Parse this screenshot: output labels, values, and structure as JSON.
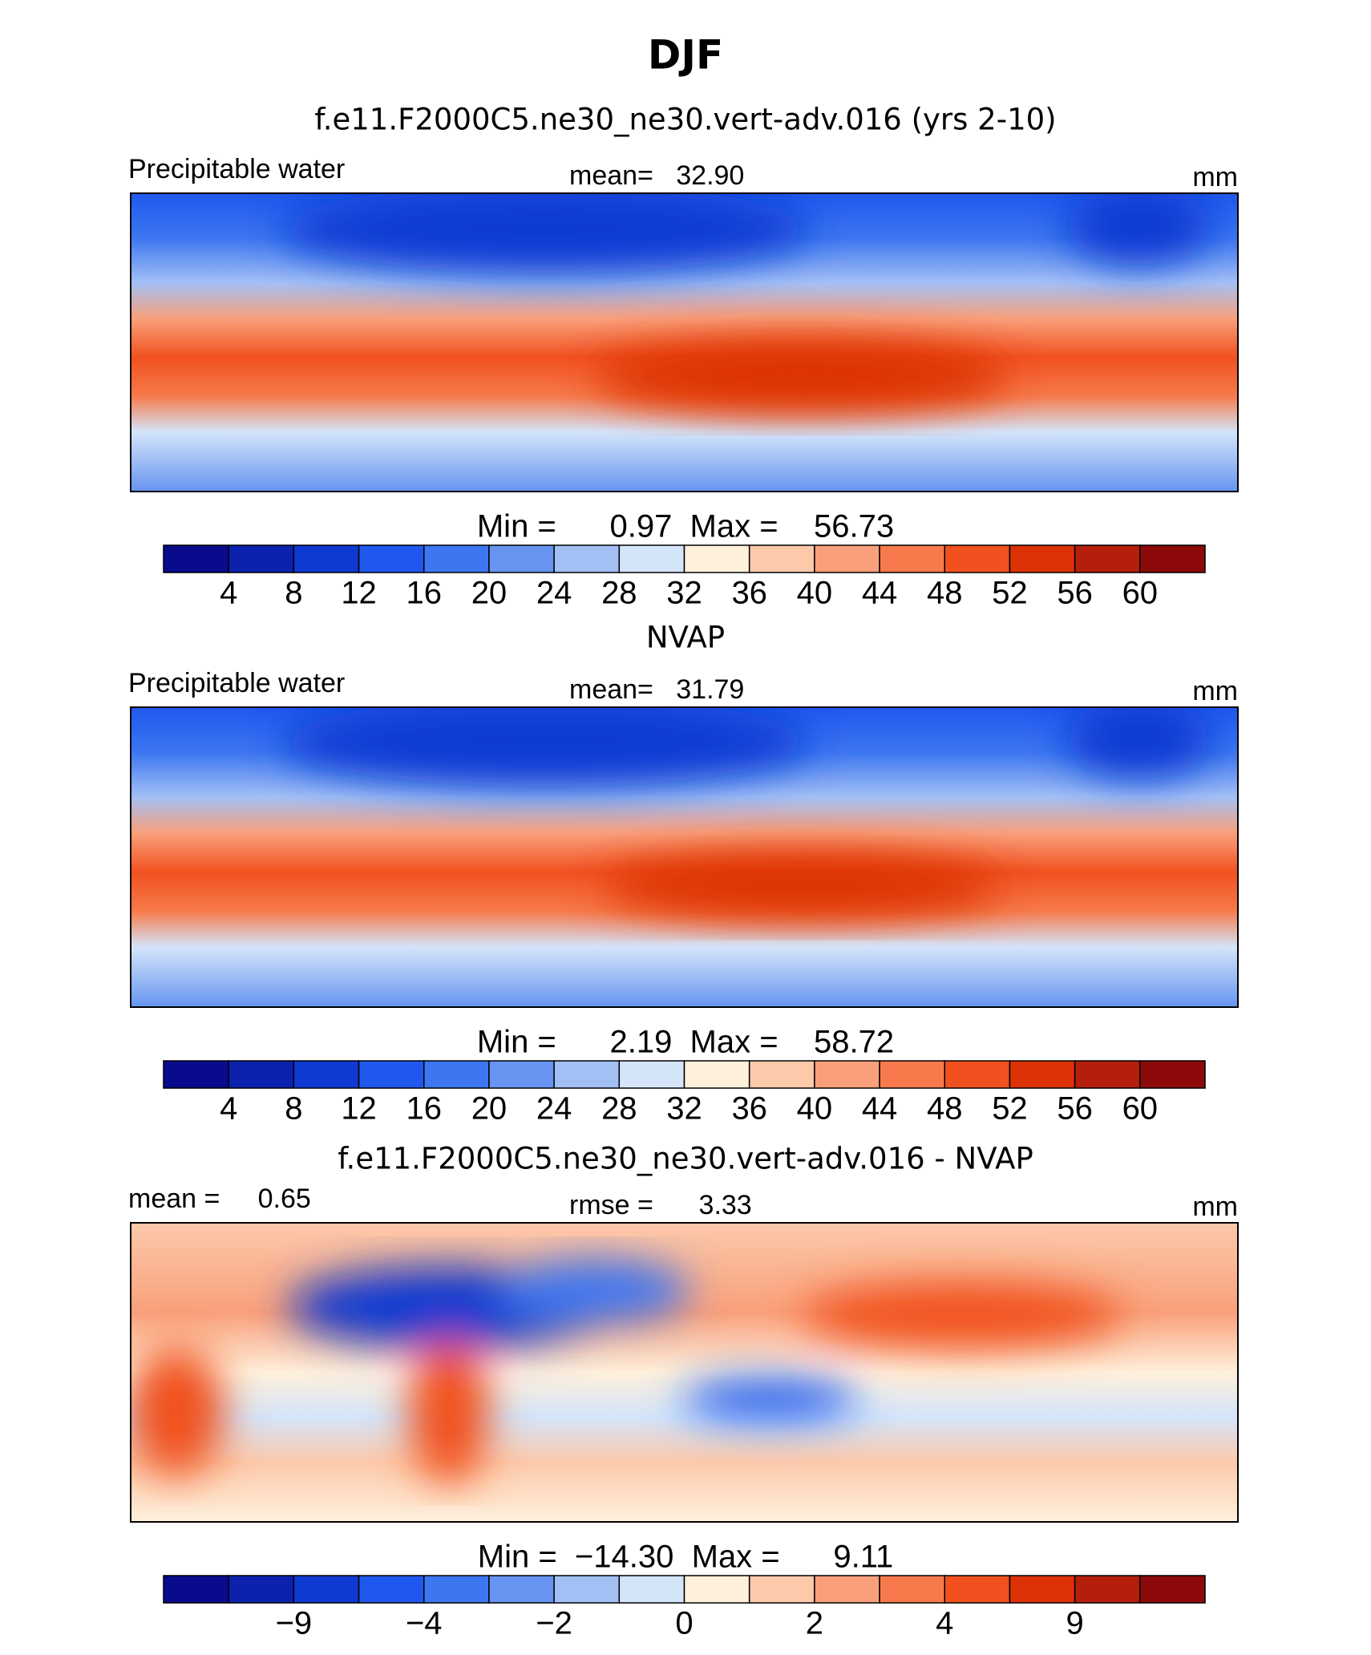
{
  "title": "DJF",
  "panels": [
    {
      "title": "f.e11.F2000C5.ne30_ne30.vert-adv.016 (yrs 2-10)",
      "left_label": "Precipitable water",
      "center_label": "mean=   32.90",
      "right_label": "mm",
      "stats": "Min =      0.97  Max =    56.73",
      "colorbar": {
        "colors": [
          "#0a0a8c",
          "#0b22ae",
          "#0e3ad2",
          "#1f58ee",
          "#3c76f0",
          "#6694f0",
          "#a3c0f5",
          "#d4e5fa",
          "#fff0dc",
          "#fcc9ab",
          "#f9a07b",
          "#f67a4b",
          "#f1511f",
          "#dc3206",
          "#b41e0b",
          "#8c0a0a"
        ],
        "ticks": [
          4,
          8,
          12,
          16,
          20,
          24,
          28,
          32,
          36,
          40,
          44,
          48,
          52,
          56,
          60
        ]
      }
    },
    {
      "title": "NVAP",
      "left_label": "Precipitable water",
      "center_label": "mean=   31.79",
      "right_label": "mm",
      "stats": "Min =      2.19  Max =    58.72",
      "colorbar": {
        "colors": [
          "#0a0a8c",
          "#0b22ae",
          "#0e3ad2",
          "#1f58ee",
          "#3c76f0",
          "#6694f0",
          "#a3c0f5",
          "#d4e5fa",
          "#fff0dc",
          "#fcc9ab",
          "#f9a07b",
          "#f67a4b",
          "#f1511f",
          "#dc3206",
          "#b41e0b",
          "#8c0a0a"
        ],
        "ticks": [
          4,
          8,
          12,
          16,
          20,
          24,
          28,
          32,
          36,
          40,
          44,
          48,
          52,
          56,
          60
        ]
      }
    },
    {
      "title": "f.e11.F2000C5.ne30_ne30.vert-adv.016 - NVAP",
      "left_label": "mean =     0.65",
      "center_label": "rmse =      3.33",
      "right_label": "mm",
      "stats": "Min =  −14.30  Max =      9.11",
      "colorbar": {
        "colors": [
          "#0a0a8c",
          "#0b22ae",
          "#0e3ad2",
          "#1f58ee",
          "#3c76f0",
          "#6694f0",
          "#a3c0f5",
          "#d4e5fa",
          "#fff0dc",
          "#fcc9ab",
          "#f9a07b",
          "#f67a4b",
          "#f1511f",
          "#dc3206",
          "#b41e0b",
          "#8c0a0a"
        ],
        "ticks": [
          null,
          {
            "value": -9,
            "label": "−9"
          },
          null,
          {
            "value": -4,
            "label": "−4"
          },
          null,
          {
            "value": -2,
            "label": "−2"
          },
          null,
          0,
          null,
          2,
          null,
          4,
          null,
          9,
          null
        ]
      }
    }
  ]
}
